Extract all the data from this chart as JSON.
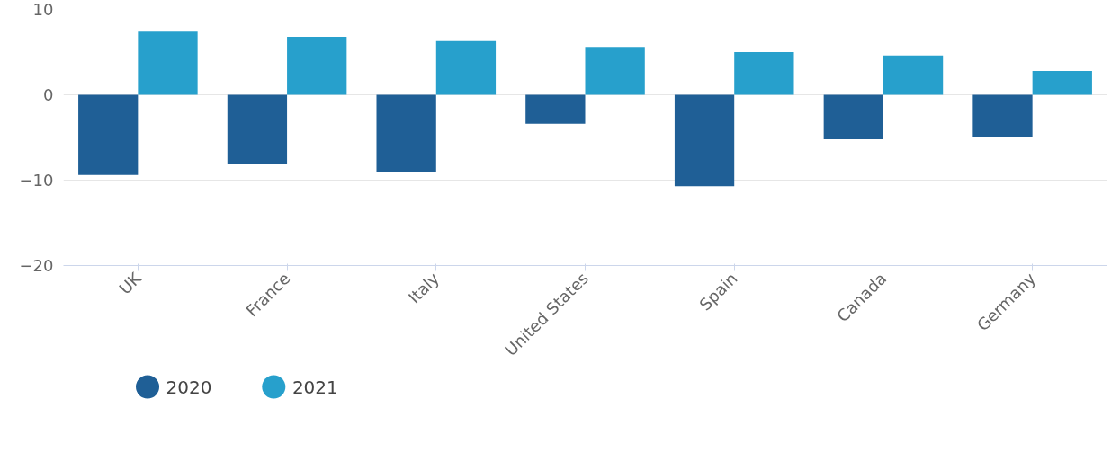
{
  "chart_data": {
    "type": "bar",
    "categories": [
      "UK",
      "France",
      "Italy",
      "United States",
      "Spain",
      "Canada",
      "Germany"
    ],
    "series": [
      {
        "name": "2020",
        "color": "#1f5f96",
        "values": [
          -9.4,
          -8.1,
          -9.0,
          -3.4,
          -10.7,
          -5.2,
          -5.0
        ]
      },
      {
        "name": "2021",
        "color": "#27a0cc",
        "values": [
          7.4,
          6.8,
          6.3,
          5.6,
          5.0,
          4.6,
          2.8
        ]
      }
    ],
    "ylim": [
      -20,
      10
    ],
    "yticks": [
      -20,
      -10,
      0,
      10
    ],
    "grid": "y",
    "legend": "bottom left"
  }
}
